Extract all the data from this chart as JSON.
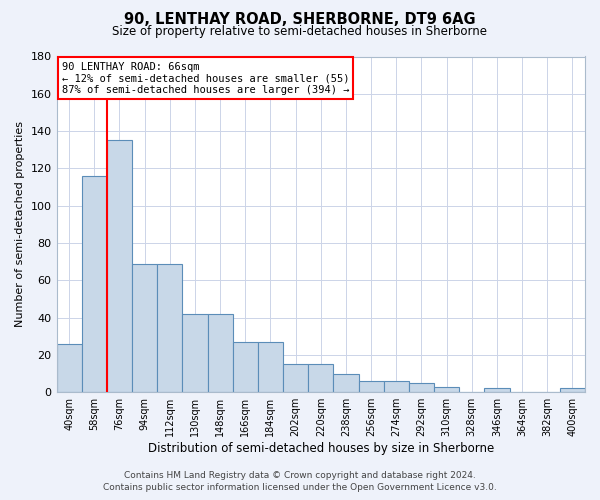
{
  "title": "90, LENTHAY ROAD, SHERBORNE, DT9 6AG",
  "subtitle": "Size of property relative to semi-detached houses in Sherborne",
  "xlabel": "Distribution of semi-detached houses by size in Sherborne",
  "ylabel": "Number of semi-detached properties",
  "categories": [
    "40sqm",
    "58sqm",
    "76sqm",
    "94sqm",
    "112sqm",
    "130sqm",
    "148sqm",
    "166sqm",
    "184sqm",
    "202sqm",
    "220sqm",
    "238sqm",
    "256sqm",
    "274sqm",
    "292sqm",
    "310sqm",
    "328sqm",
    "346sqm",
    "364sqm",
    "382sqm",
    "400sqm"
  ],
  "values": [
    26,
    116,
    135,
    69,
    69,
    42,
    42,
    27,
    27,
    15,
    15,
    10,
    6,
    6,
    5,
    3,
    0,
    2,
    0,
    0,
    2
  ],
  "bar_color": "#c8d8e8",
  "bar_edge_color": "#5b8db8",
  "vline_x": 1.5,
  "vline_color": "red",
  "annotation_title": "90 LENTHAY ROAD: 66sqm",
  "annotation_line1": "← 12% of semi-detached houses are smaller (55)",
  "annotation_line2": "87% of semi-detached houses are larger (394) →",
  "ylim": [
    0,
    180
  ],
  "yticks": [
    0,
    20,
    40,
    60,
    80,
    100,
    120,
    140,
    160,
    180
  ],
  "footer1": "Contains HM Land Registry data © Crown copyright and database right 2024.",
  "footer2": "Contains public sector information licensed under the Open Government Licence v3.0.",
  "bg_color": "#eef2fa",
  "plot_bg_color": "#ffffff",
  "grid_color": "#ccd4e8"
}
